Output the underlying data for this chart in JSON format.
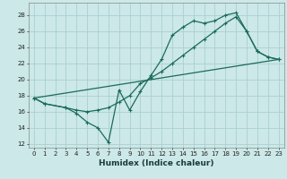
{
  "xlabel": "Humidex (Indice chaleur)",
  "bg_color": "#cce8e8",
  "grid_color": "#aad0d0",
  "line_color": "#1a6b5a",
  "xlim": [
    -0.5,
    23.5
  ],
  "ylim": [
    11.5,
    29.5
  ],
  "yticks": [
    12,
    14,
    16,
    18,
    20,
    22,
    24,
    26,
    28
  ],
  "xticks": [
    0,
    1,
    2,
    3,
    4,
    5,
    6,
    7,
    8,
    9,
    10,
    11,
    12,
    13,
    14,
    15,
    16,
    17,
    18,
    19,
    20,
    21,
    22,
    23
  ],
  "line1_x": [
    0,
    1,
    3,
    4,
    5,
    6,
    7,
    8,
    9,
    10,
    11,
    12,
    13,
    14,
    15,
    16,
    17,
    18,
    19,
    20,
    21,
    22,
    23
  ],
  "line1_y": [
    17.7,
    17.0,
    16.5,
    15.8,
    14.7,
    14.0,
    12.2,
    18.7,
    16.2,
    18.5,
    20.5,
    22.5,
    25.5,
    26.5,
    27.3,
    27.0,
    27.3,
    28.0,
    28.3,
    26.0,
    23.5,
    22.8,
    22.5
  ],
  "line2_x": [
    0,
    1,
    3,
    4,
    5,
    6,
    7,
    8,
    9,
    10,
    11,
    12,
    13,
    14,
    15,
    16,
    17,
    18,
    19,
    20,
    21,
    22,
    23
  ],
  "line2_y": [
    17.7,
    17.0,
    16.5,
    16.2,
    16.0,
    16.2,
    16.5,
    17.2,
    18.0,
    19.5,
    20.2,
    21.0,
    22.0,
    23.0,
    24.0,
    25.0,
    26.0,
    27.0,
    27.8,
    26.0,
    23.5,
    22.8,
    22.5
  ],
  "line3_x": [
    0,
    23
  ],
  "line3_y": [
    17.7,
    22.5
  ]
}
